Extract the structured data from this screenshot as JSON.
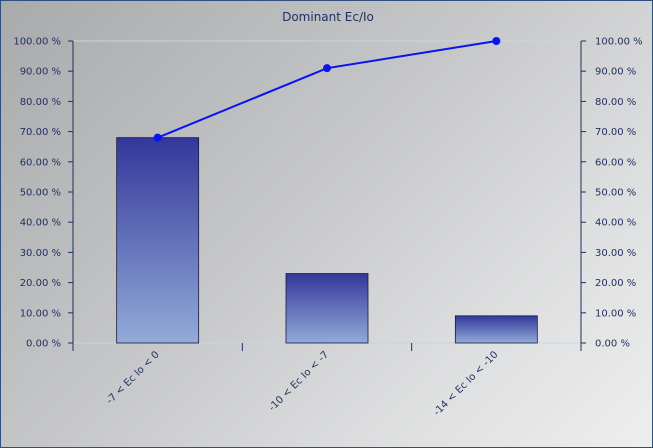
{
  "chart_data": {
    "type": "bar",
    "title": "Dominant Ec/Io",
    "xlabel": "",
    "ylabel": "",
    "categories": [
      "-7 < Ec Io < 0",
      "-10 < Ec Io < -7",
      "-14 < Ec Io < -10"
    ],
    "series": [
      {
        "type": "bar",
        "values": [
          68,
          23,
          9
        ]
      },
      {
        "type": "line",
        "values": [
          68,
          91,
          100
        ]
      }
    ],
    "ylim": [
      0,
      100
    ],
    "y_ticks": [
      "0.00 %",
      "10.00 %",
      "20.00 %",
      "30.00 %",
      "40.00 %",
      "50.00 %",
      "60.00 %",
      "70.00 %",
      "80.00 %",
      "90.00 %",
      "100.00 %"
    ],
    "y_ticks_right": [
      "0.00 %",
      "10.00 %",
      "20.00 %",
      "30.00 %",
      "40.00 %",
      "50.00 %",
      "60.00 %",
      "70.00 %",
      "80.00 %",
      "90.00 %",
      "100.00 %"
    ],
    "grid": false,
    "legend": "none",
    "colors": {
      "bar_top": "#33379a",
      "bar_bottom": "#92abd9",
      "line": "#0a14ee",
      "axis": "#1f2f5f",
      "frame_line": "#c9d4e8"
    }
  }
}
